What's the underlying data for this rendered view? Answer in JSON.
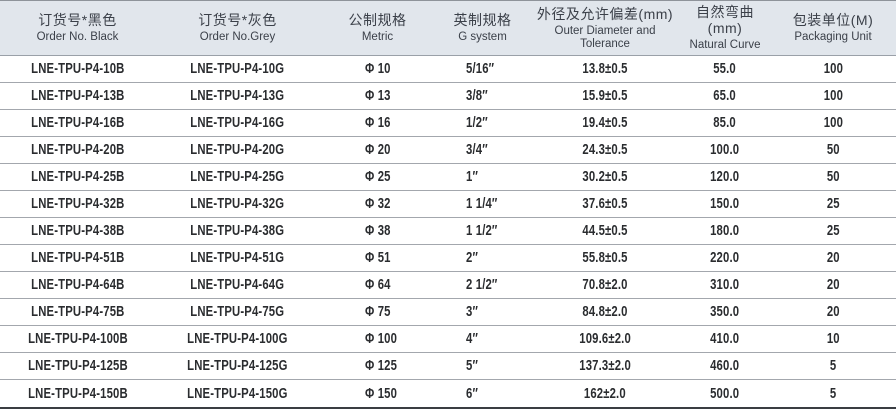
{
  "colors": {
    "header_bg": "#e1e6ec",
    "header_text": "#3b4049",
    "body_text": "#2a2c2f",
    "row_line": "#a3a7ad",
    "top_border": "#8e939a",
    "bottom_border": "#3a3d42"
  },
  "table": {
    "columns": [
      {
        "zh": "订货号*黑色",
        "en": "Order No. Black"
      },
      {
        "zh": "订货号*灰色",
        "en": "Order No.Grey"
      },
      {
        "zh": "公制规格",
        "en": "Metric"
      },
      {
        "zh": "英制规格",
        "en": "G system"
      },
      {
        "zh": "外径及允许偏差(mm)",
        "en": "Outer Diameter and Tolerance"
      },
      {
        "zh": "自然弯曲(mm)",
        "en": "Natural Curve"
      },
      {
        "zh": "包装单位(M)",
        "en": "Packaging Unit"
      }
    ],
    "rows": [
      [
        "LNE-TPU-P4-10B",
        "LNE-TPU-P4-10G",
        "Φ 10",
        "5/16″",
        "13.8±0.5",
        "55.0",
        "100"
      ],
      [
        "LNE-TPU-P4-13B",
        "LNE-TPU-P4-13G",
        "Φ 13",
        "3/8″",
        "15.9±0.5",
        "65.0",
        "100"
      ],
      [
        "LNE-TPU-P4-16B",
        "LNE-TPU-P4-16G",
        "Φ 16",
        "1/2″",
        "19.4±0.5",
        "85.0",
        "100"
      ],
      [
        "LNE-TPU-P4-20B",
        "LNE-TPU-P4-20G",
        "Φ 20",
        "3/4″",
        "24.3±0.5",
        "100.0",
        "50"
      ],
      [
        "LNE-TPU-P4-25B",
        "LNE-TPU-P4-25G",
        "Φ 25",
        "1″",
        "30.2±0.5",
        "120.0",
        "50"
      ],
      [
        "LNE-TPU-P4-32B",
        "LNE-TPU-P4-32G",
        "Φ 32",
        "1 1/4″",
        "37.6±0.5",
        "150.0",
        "25"
      ],
      [
        "LNE-TPU-P4-38B",
        "LNE-TPU-P4-38G",
        "Φ 38",
        "1 1/2″",
        "44.5±0.5",
        "180.0",
        "25"
      ],
      [
        "LNE-TPU-P4-51B",
        "LNE-TPU-P4-51G",
        "Φ 51",
        "2″",
        "55.8±0.5",
        "220.0",
        "20"
      ],
      [
        "LNE-TPU-P4-64B",
        "LNE-TPU-P4-64G",
        "Φ 64",
        "2 1/2″",
        "70.8±2.0",
        "310.0",
        "20"
      ],
      [
        "LNE-TPU-P4-75B",
        "LNE-TPU-P4-75G",
        "Φ 75",
        "3″",
        "84.8±2.0",
        "350.0",
        "20"
      ],
      [
        "LNE-TPU-P4-100B",
        "LNE-TPU-P4-100G",
        "Φ 100",
        "4″",
        "109.6±2.0",
        "410.0",
        "10"
      ],
      [
        "LNE-TPU-P4-125B",
        "LNE-TPU-P4-125G",
        "Φ 125",
        "5″",
        "137.3±2.0",
        "460.0",
        "5"
      ],
      [
        "LNE-TPU-P4-150B",
        "LNE-TPU-P4-150G",
        "Φ 150",
        "6″",
        "162±2.0",
        "500.0",
        "5"
      ]
    ]
  }
}
